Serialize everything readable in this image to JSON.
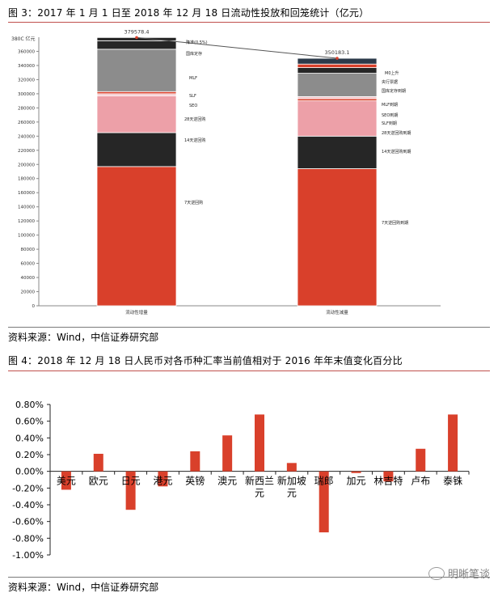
{
  "figure3": {
    "caption": "图 3：2017 年 1 月 1 日至 2018 年 12 月 18 日流动性投放和回笼统计（亿元）",
    "source": "资料来源：Wind，中信证券研究部"
  },
  "figure4": {
    "caption": "图 4：2018 年 12 月 18 日人民币对各币种汇率当前值相对于 2016 年年末值变化百分比",
    "source": "资料来源：Wind，中信证券研究部"
  },
  "watermark": "明晰笔谈",
  "colors": {
    "red": "#d9402b",
    "black": "#262626",
    "pink": "#eda0a8",
    "gray": "#8c8c8c",
    "lightpink": "#f3c4c8",
    "navy": "#2c3a4a",
    "rule": "#c0504d"
  },
  "chart_data": [
    {
      "type": "bar",
      "stacked": true,
      "unit_label": "380C 亿元",
      "categories": [
        "流动性增量",
        "流动性减量"
      ],
      "ylim": [
        0,
        380000
      ],
      "yticks": [
        "0",
        "20000",
        "40000",
        "60000",
        "80000",
        "100000",
        "120000",
        "140000",
        "160000",
        "180000",
        "200000",
        "220000",
        "240000",
        "260000",
        "280000",
        "300000",
        "320000",
        "340000",
        "360000"
      ],
      "totals": [
        {
          "category": "流动性增量",
          "value": 379578,
          "label": "379578.4"
        },
        {
          "category": "流动性减量",
          "value": 350183,
          "label": "350183.1"
        }
      ],
      "stacks": [
        {
          "category": "流动性增量",
          "segments": [
            {
              "label": "7天逆回购",
              "start": 0,
              "end": 197000,
              "color": "red"
            },
            {
              "label": "14天逆回购",
              "start": 197000,
              "end": 245000,
              "color": "black"
            },
            {
              "label": "28天逆回购",
              "start": 245000,
              "end": 297000,
              "color": "pink"
            },
            {
              "label": "SEO",
              "start": 297000,
              "end": 300000,
              "color": "lightpink"
            },
            {
              "label": "SLF",
              "start": 300000,
              "end": 303000,
              "color": "red"
            },
            {
              "label": "MLF",
              "start": 303000,
              "end": 363000,
              "color": "gray"
            },
            {
              "label": "国库定存",
              "start": 363000,
              "end": 375000,
              "color": "black"
            },
            {
              "label": "降准(0.5%)",
              "start": 375000,
              "end": 379578,
              "color": "black"
            }
          ]
        },
        {
          "category": "流动性减量",
          "segments": [
            {
              "label": "7天逆回购到期",
              "start": 0,
              "end": 194000,
              "color": "red"
            },
            {
              "label": "14天逆回购到期",
              "start": 194000,
              "end": 240000,
              "color": "black"
            },
            {
              "label": "28天逆回购到期",
              "start": 240000,
              "end": 290000,
              "color": "pink"
            },
            {
              "label": "SLF到期",
              "start": 290000,
              "end": 293000,
              "color": "red"
            },
            {
              "label": "SEO到期",
              "start": 293000,
              "end": 296000,
              "color": "lightpink"
            },
            {
              "label": "MLF到期",
              "start": 296000,
              "end": 329000,
              "color": "gray"
            },
            {
              "label": "国库定存到期",
              "start": 329000,
              "end": 337000,
              "color": "black"
            },
            {
              "label": "央行票据",
              "start": 337000,
              "end": 342000,
              "color": "red"
            },
            {
              "label": "M0上升",
              "start": 342000,
              "end": 350183,
              "color": "navy"
            }
          ]
        }
      ]
    },
    {
      "type": "bar",
      "categories": [
        "美元",
        "欧元",
        "日元",
        "港元",
        "英镑",
        "澳元",
        "新西兰元",
        "新加坡元",
        "瑞郎",
        "加元",
        "林吉特",
        "卢布",
        "泰铢"
      ],
      "values": [
        -0.22,
        0.21,
        -0.46,
        -0.18,
        0.24,
        0.43,
        0.68,
        0.1,
        -0.73,
        -0.02,
        -0.12,
        0.27,
        0.68
      ],
      "ylim": [
        -1.0,
        0.8
      ],
      "yticks": [
        "-1.00%",
        "-0.80%",
        "-0.60%",
        "-0.40%",
        "-0.20%",
        "0.00%",
        "0.20%",
        "0.40%",
        "0.60%",
        "0.80%"
      ],
      "ytick_values": [
        -1.0,
        -0.8,
        -0.6,
        -0.4,
        -0.2,
        0,
        0.2,
        0.4,
        0.6,
        0.8
      ],
      "color": "#d9402b"
    }
  ]
}
